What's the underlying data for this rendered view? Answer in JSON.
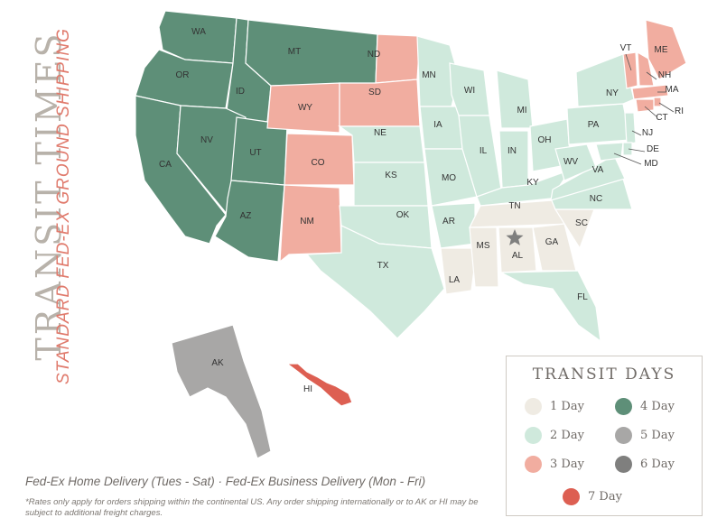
{
  "title": "TRANSIT TIMES",
  "subtitle": "STANDARD FED-EX GROUND SHIPPING",
  "footer": {
    "delivery_line": "Fed-Ex Home Delivery (Tues - Sat) · Fed-Ex Business Delivery (Mon - Fri)",
    "note": "*Rates only apply for orders shipping within the continental US. Any order shipping internationally or to AK or HI may be subject to additional freight charges."
  },
  "legend": {
    "title": "TRANSIT DAYS",
    "items": [
      {
        "label": "1 Day",
        "color": "#efebe3"
      },
      {
        "label": "2 Day",
        "color": "#cfe9dc"
      },
      {
        "label": "3 Day",
        "color": "#f1ada0"
      },
      {
        "label": "4 Day",
        "color": "#5e8f78"
      },
      {
        "label": "5 Day",
        "color": "#a8a7a6"
      },
      {
        "label": "6 Day",
        "color": "#7f7f7e"
      },
      {
        "label": "7 Day",
        "color": "#dd5f52"
      }
    ]
  },
  "zone_colors": {
    "1": "#efebe3",
    "2": "#cfe9dc",
    "3": "#f1ada0",
    "4": "#5e8f78",
    "5": "#a8a7a6",
    "6": "#7f7f7e",
    "7": "#dd5f52"
  },
  "origin_marker": "star-icon",
  "states": [
    {
      "abbr": "WA",
      "days": 4
    },
    {
      "abbr": "OR",
      "days": 4
    },
    {
      "abbr": "CA",
      "days": 4
    },
    {
      "abbr": "ID",
      "days": 4
    },
    {
      "abbr": "NV",
      "days": 4
    },
    {
      "abbr": "UT",
      "days": 4
    },
    {
      "abbr": "AZ",
      "days": 4
    },
    {
      "abbr": "MT",
      "days": 4
    },
    {
      "abbr": "WY",
      "days": 3
    },
    {
      "abbr": "CO",
      "days": 3
    },
    {
      "abbr": "NM",
      "days": 3
    },
    {
      "abbr": "ND",
      "days": 3
    },
    {
      "abbr": "SD",
      "days": 3
    },
    {
      "abbr": "NE",
      "days": 2
    },
    {
      "abbr": "KS",
      "days": 2
    },
    {
      "abbr": "OK",
      "days": 2
    },
    {
      "abbr": "TX",
      "days": 2
    },
    {
      "abbr": "MN",
      "days": 2
    },
    {
      "abbr": "IA",
      "days": 2
    },
    {
      "abbr": "MO",
      "days": 2
    },
    {
      "abbr": "AR",
      "days": 2
    },
    {
      "abbr": "LA",
      "days": 1
    },
    {
      "abbr": "WI",
      "days": 2
    },
    {
      "abbr": "IL",
      "days": 2
    },
    {
      "abbr": "MI",
      "days": 2
    },
    {
      "abbr": "IN",
      "days": 2
    },
    {
      "abbr": "OH",
      "days": 2
    },
    {
      "abbr": "KY",
      "days": 2
    },
    {
      "abbr": "TN",
      "days": 1
    },
    {
      "abbr": "MS",
      "days": 1
    },
    {
      "abbr": "AL",
      "days": 1
    },
    {
      "abbr": "GA",
      "days": 1
    },
    {
      "abbr": "FL",
      "days": 2
    },
    {
      "abbr": "SC",
      "days": 1
    },
    {
      "abbr": "NC",
      "days": 2
    },
    {
      "abbr": "VA",
      "days": 2
    },
    {
      "abbr": "WV",
      "days": 2
    },
    {
      "abbr": "PA",
      "days": 2
    },
    {
      "abbr": "NY",
      "days": 2
    },
    {
      "abbr": "ME",
      "days": 3
    },
    {
      "abbr": "VT",
      "days": 3
    },
    {
      "abbr": "NH",
      "days": 3
    },
    {
      "abbr": "MA",
      "days": 3
    },
    {
      "abbr": "RI",
      "days": 3
    },
    {
      "abbr": "CT",
      "days": 3
    },
    {
      "abbr": "NJ",
      "days": 2
    },
    {
      "abbr": "DE",
      "days": 2
    },
    {
      "abbr": "MD",
      "days": 2
    },
    {
      "abbr": "AK",
      "days": 5
    },
    {
      "abbr": "HI",
      "days": 7
    }
  ]
}
